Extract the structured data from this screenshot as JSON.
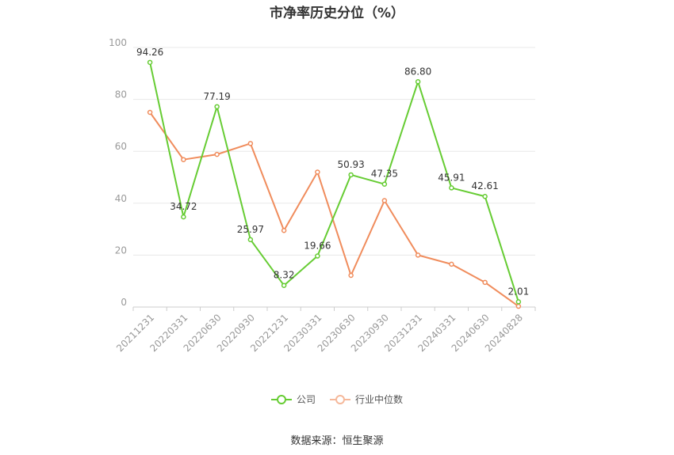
{
  "chart_data": {
    "type": "line",
    "title": "市净率历史分位（%）",
    "categories": [
      "20211231",
      "20220331",
      "20220630",
      "20220930",
      "20221231",
      "20230331",
      "20230630",
      "20230930",
      "20231231",
      "20240331",
      "20240630",
      "20240828"
    ],
    "series": [
      {
        "name": "公司",
        "color": "#66cc33",
        "values": [
          94.26,
          34.72,
          77.19,
          25.97,
          8.32,
          19.66,
          50.93,
          47.35,
          86.8,
          45.91,
          42.61,
          2.01
        ],
        "labels": [
          "94.26",
          "34.72",
          "77.19",
          "25.97",
          "8.32",
          "19.66",
          "50.93",
          "47.35",
          "86.80",
          "45.91",
          "42.61",
          "2.01"
        ]
      },
      {
        "name": "行业中位数",
        "color": "#f08c5c",
        "values": [
          75.0,
          56.8,
          58.8,
          63.0,
          29.5,
          52.0,
          12.2,
          41.0,
          20.0,
          16.5,
          9.5,
          0.3
        ]
      }
    ],
    "yticks": [
      "0",
      "20",
      "40",
      "60",
      "80",
      "100"
    ],
    "ylim": [
      0,
      100
    ],
    "grid": true,
    "legend_position": "bottom"
  },
  "source_text": "数据来源：恒生聚源"
}
